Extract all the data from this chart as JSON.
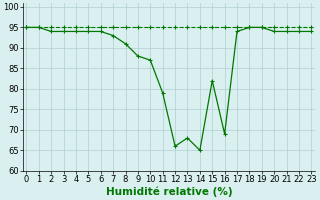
{
  "x": [
    0,
    1,
    2,
    3,
    4,
    5,
    6,
    7,
    8,
    9,
    10,
    11,
    12,
    13,
    14,
    15,
    16,
    17,
    18,
    19,
    20,
    21,
    22,
    23
  ],
  "y_solid": [
    95,
    95,
    94,
    94,
    94,
    94,
    94,
    93,
    91,
    88,
    87,
    79,
    66,
    68,
    65,
    82,
    69,
    94,
    95,
    95,
    94,
    94,
    94,
    94
  ],
  "y_dash": [
    95,
    95,
    95,
    95,
    95,
    95,
    95,
    95,
    95,
    95,
    95,
    95,
    95,
    95,
    95,
    95,
    95,
    95,
    95,
    95,
    95,
    95,
    95,
    95
  ],
  "line_color": "#007700",
  "bg_color": "#daf0f0",
  "grid_color": "#b0cece",
  "xlabel": "Humidité relative (%)",
  "xlabel_color": "#007700",
  "ylim": [
    60,
    101
  ],
  "yticks": [
    60,
    65,
    70,
    75,
    80,
    85,
    90,
    95,
    100
  ],
  "xticks": [
    0,
    1,
    2,
    3,
    4,
    5,
    6,
    7,
    8,
    9,
    10,
    11,
    12,
    13,
    14,
    15,
    16,
    17,
    18,
    19,
    20,
    21,
    22,
    23
  ],
  "tick_fontsize": 6,
  "xlabel_fontsize": 7.5
}
